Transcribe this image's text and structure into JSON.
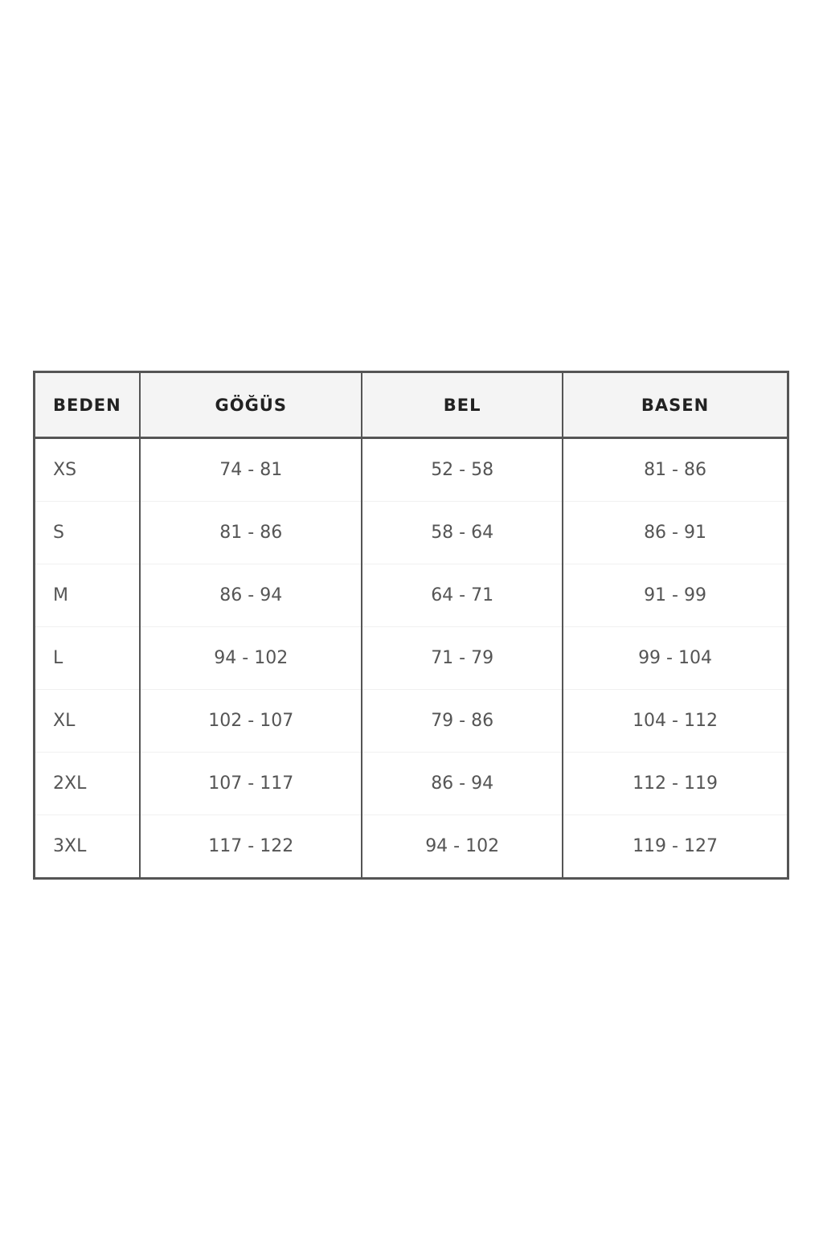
{
  "size_chart": {
    "headers": [
      "BEDEN",
      "GÖĞÜS",
      "BEL",
      "BASEN"
    ],
    "rows": [
      [
        "XS",
        "74 - 81",
        "52 - 58",
        "81 - 86"
      ],
      [
        "S",
        "81 - 86",
        "58 - 64",
        "86 - 91"
      ],
      [
        "M",
        "86 - 94",
        "64 - 71",
        "91 - 99"
      ],
      [
        "L",
        "94 - 102",
        "71 - 79",
        "99 - 104"
      ],
      [
        "XL",
        "102 - 107",
        "79 - 86",
        "104 - 112"
      ],
      [
        "2XL",
        "107 - 117",
        "86 - 94",
        "112 - 119"
      ],
      [
        "3XL",
        "117 - 122",
        "94 - 102",
        "119 - 127"
      ]
    ]
  }
}
